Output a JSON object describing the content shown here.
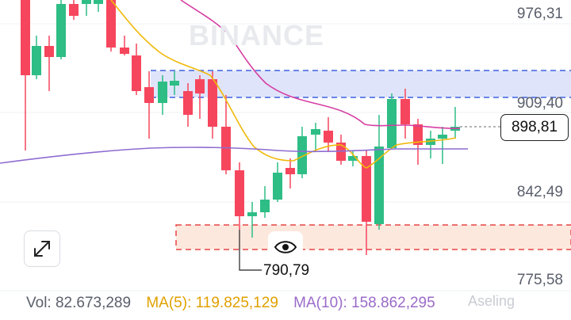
{
  "watermark": "BINANCE",
  "price_axis": {
    "labels": [
      "976,31",
      "909,40",
      "842,49",
      "775,58"
    ]
  },
  "current_price": "898,81",
  "low_marker": "790,79",
  "footer": {
    "volume": "Vol: 82.673,289",
    "ma5": "MA(5): 119.825,129",
    "ma10": "MA(10): 158.862,295"
  },
  "attribution": "Aseling",
  "colors": {
    "up": "#2ebd85",
    "down": "#f6465d",
    "ma_yellow": "#f0b90b",
    "ma_pink": "#d63fa3",
    "ma_purple": "#8e6cd0",
    "resistance_zone": "#dfe4fb",
    "support_zone": "#fde8de"
  },
  "icons": {
    "expand": "expand-arrows-icon",
    "eye": "eye-icon"
  }
}
